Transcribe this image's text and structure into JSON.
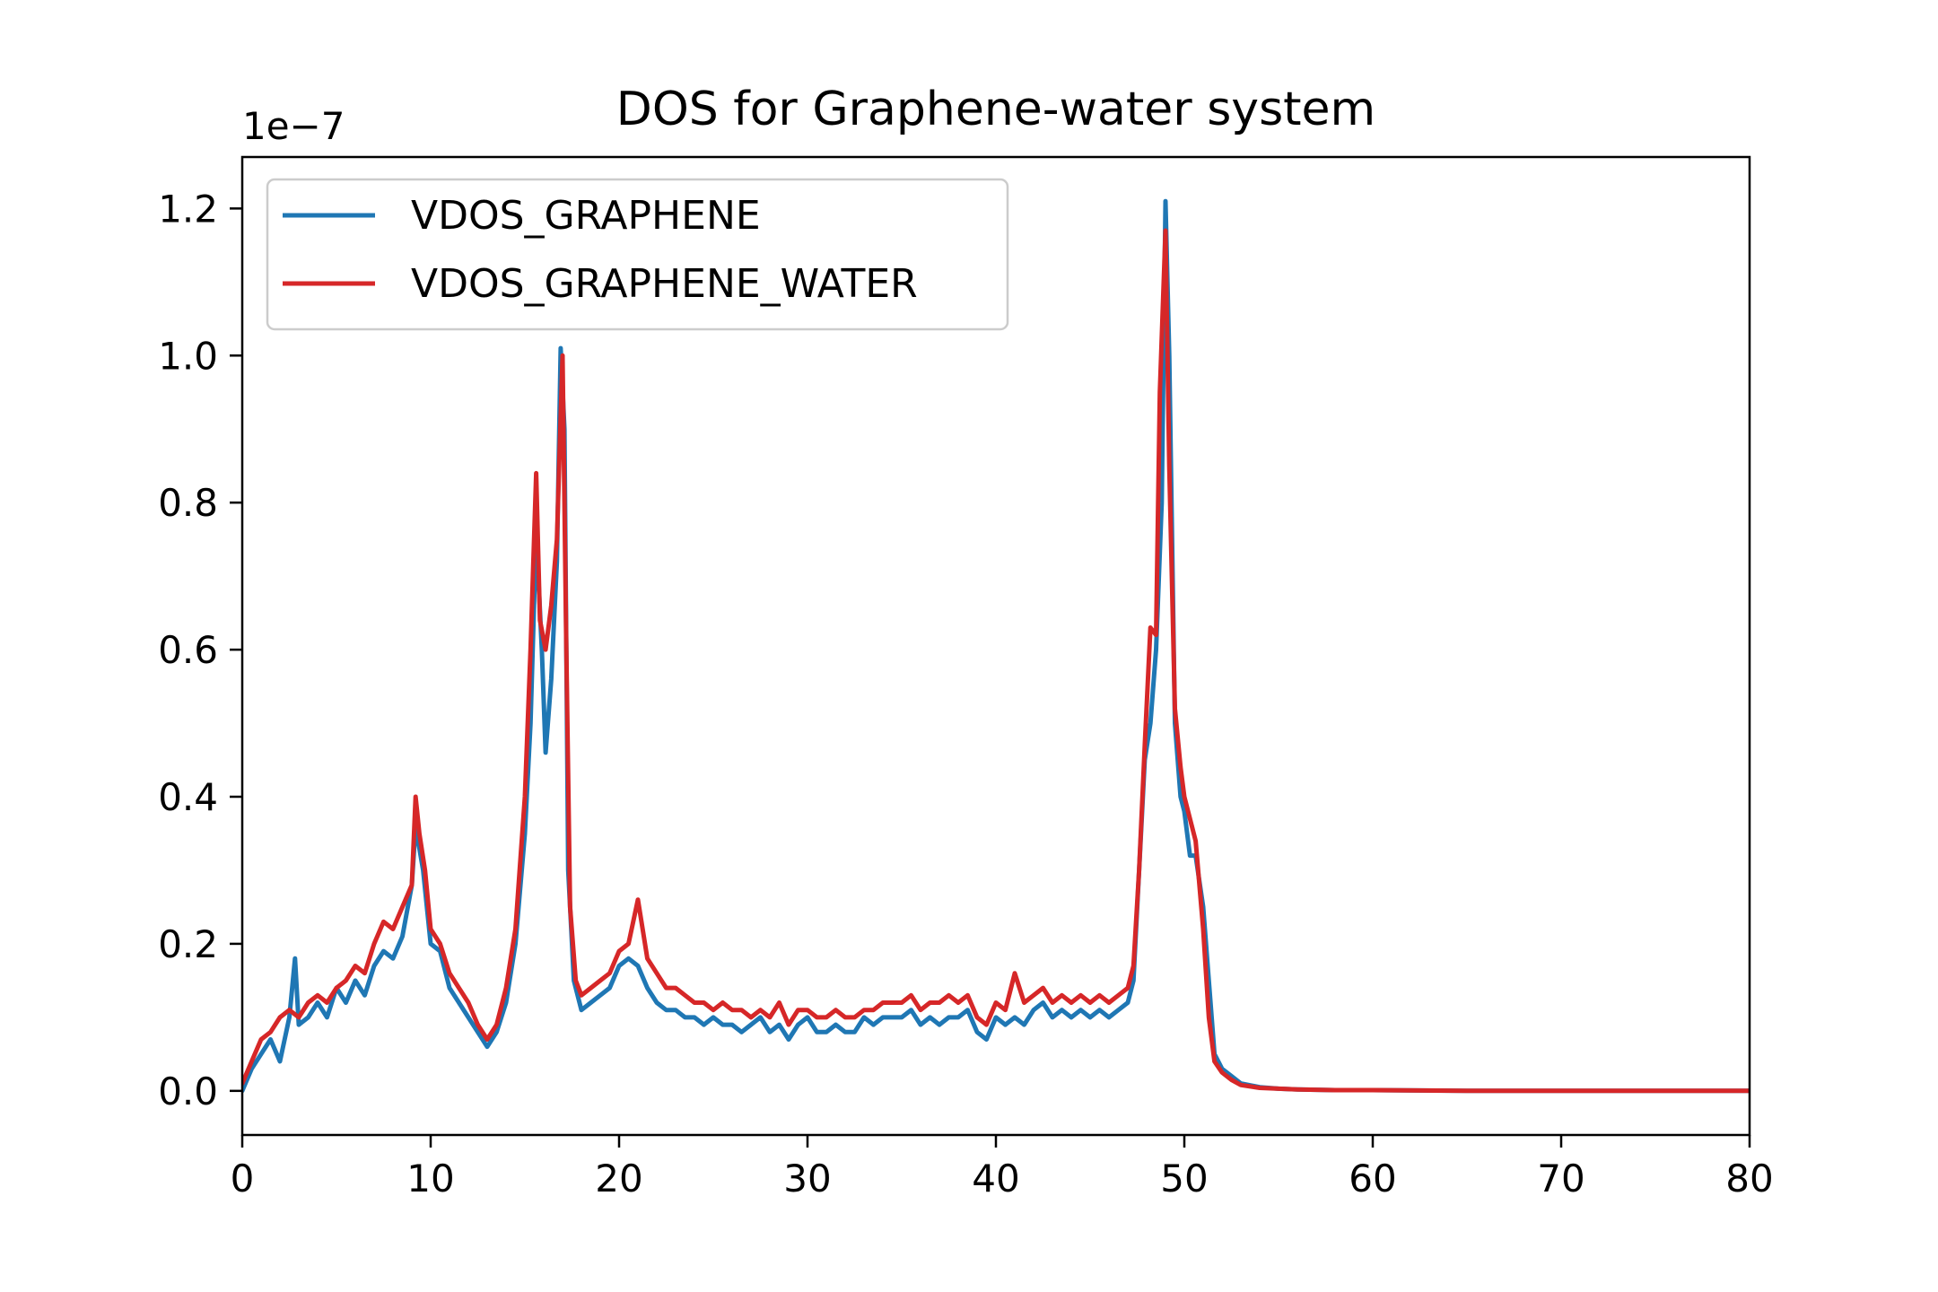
{
  "chart_data": {
    "type": "line",
    "title": "DOS for Graphene-water system",
    "xlabel": "",
    "ylabel": "",
    "offset_label": "1e−7",
    "xlim": [
      0,
      80
    ],
    "ylim": [
      -0.06,
      1.27
    ],
    "x_ticks": [
      0,
      10,
      20,
      30,
      40,
      50,
      60,
      70,
      80
    ],
    "x_tick_labels": [
      "0",
      "10",
      "20",
      "30",
      "40",
      "50",
      "60",
      "70",
      "80"
    ],
    "y_ticks": [
      0.0,
      0.2,
      0.4,
      0.6,
      0.8,
      1.0,
      1.2
    ],
    "y_tick_labels": [
      "0.0",
      "0.2",
      "0.4",
      "0.6",
      "0.8",
      "1.0",
      "1.2"
    ],
    "grid": false,
    "legend_position": "top-left",
    "series": [
      {
        "name": "VDOS_GRAPHENE",
        "color": "#1f77b4",
        "x": [
          0,
          0.5,
          1,
          1.5,
          2,
          2.5,
          2.8,
          3,
          3.5,
          4,
          4.5,
          5,
          5.5,
          6,
          6.5,
          7,
          7.5,
          8,
          8.5,
          9,
          9.2,
          9.6,
          10,
          10.5,
          11,
          11.5,
          12,
          12.5,
          13,
          13.5,
          14,
          14.5,
          15,
          15.3,
          15.6,
          15.9,
          16.1,
          16.4,
          16.7,
          16.9,
          17.1,
          17.3,
          17.6,
          18,
          18.5,
          19,
          19.5,
          20,
          20.5,
          21,
          21.5,
          22,
          22.5,
          23,
          23.5,
          24,
          24.5,
          25,
          25.5,
          26,
          26.5,
          27,
          27.5,
          28,
          28.5,
          29,
          29.5,
          30,
          30.5,
          31,
          31.5,
          32,
          32.5,
          33,
          33.5,
          34,
          34.5,
          35,
          35.5,
          36,
          36.5,
          37,
          37.5,
          38,
          38.5,
          39,
          39.5,
          40,
          40.5,
          41,
          41.5,
          42,
          42.5,
          43,
          43.5,
          44,
          44.5,
          45,
          45.5,
          46,
          46.5,
          47,
          47.3,
          47.6,
          47.9,
          48.2,
          48.5,
          48.8,
          49,
          49.2,
          49.5,
          49.8,
          50,
          50.3,
          50.6,
          51,
          51.3,
          51.6,
          52,
          52.5,
          53,
          54,
          55,
          56,
          58,
          60,
          65,
          70,
          75,
          80
        ],
        "y": [
          0.0,
          0.03,
          0.05,
          0.07,
          0.04,
          0.1,
          0.18,
          0.09,
          0.1,
          0.12,
          0.1,
          0.14,
          0.12,
          0.15,
          0.13,
          0.17,
          0.19,
          0.18,
          0.21,
          0.28,
          0.36,
          0.3,
          0.2,
          0.19,
          0.14,
          0.12,
          0.1,
          0.08,
          0.06,
          0.08,
          0.12,
          0.2,
          0.35,
          0.5,
          0.76,
          0.6,
          0.46,
          0.56,
          0.72,
          1.01,
          0.9,
          0.3,
          0.15,
          0.11,
          0.12,
          0.13,
          0.14,
          0.17,
          0.18,
          0.17,
          0.14,
          0.12,
          0.11,
          0.11,
          0.1,
          0.1,
          0.09,
          0.1,
          0.09,
          0.09,
          0.08,
          0.09,
          0.1,
          0.08,
          0.09,
          0.07,
          0.09,
          0.1,
          0.08,
          0.08,
          0.09,
          0.08,
          0.08,
          0.1,
          0.09,
          0.1,
          0.1,
          0.1,
          0.11,
          0.09,
          0.1,
          0.09,
          0.1,
          0.1,
          0.11,
          0.08,
          0.07,
          0.1,
          0.09,
          0.1,
          0.09,
          0.11,
          0.12,
          0.1,
          0.11,
          0.1,
          0.11,
          0.1,
          0.11,
          0.1,
          0.11,
          0.12,
          0.15,
          0.3,
          0.45,
          0.5,
          0.6,
          0.8,
          1.21,
          1.0,
          0.5,
          0.4,
          0.38,
          0.32,
          0.32,
          0.25,
          0.15,
          0.05,
          0.03,
          0.02,
          0.01,
          0.005,
          0.003,
          0.002,
          0.001,
          0.001,
          0.0,
          0.0,
          0.0,
          0.0
        ]
      },
      {
        "name": "VDOS_GRAPHENE_WATER",
        "color": "#d62728",
        "x": [
          0,
          0.5,
          1,
          1.5,
          2,
          2.5,
          3,
          3.5,
          4,
          4.5,
          5,
          5.5,
          6,
          6.5,
          7,
          7.5,
          8,
          8.5,
          9,
          9.2,
          9.4,
          9.7,
          10,
          10.5,
          11,
          11.5,
          12,
          12.5,
          13,
          13.5,
          14,
          14.5,
          15,
          15.3,
          15.6,
          15.8,
          16.1,
          16.4,
          16.7,
          17,
          17.2,
          17.4,
          17.7,
          18,
          18.5,
          19,
          19.5,
          20,
          20.5,
          21,
          21.5,
          22,
          22.5,
          23,
          23.5,
          24,
          24.5,
          25,
          25.5,
          26,
          26.5,
          27,
          27.5,
          28,
          28.5,
          29,
          29.5,
          30,
          30.5,
          31,
          31.5,
          32,
          32.5,
          33,
          33.5,
          34,
          34.5,
          35,
          35.5,
          36,
          36.5,
          37,
          37.5,
          38,
          38.5,
          39,
          39.5,
          40,
          40.5,
          41,
          41.5,
          42,
          42.5,
          43,
          43.5,
          44,
          44.5,
          45,
          45.5,
          46,
          46.5,
          47,
          47.3,
          47.6,
          47.9,
          48.2,
          48.5,
          48.7,
          49,
          49.2,
          49.5,
          49.8,
          50,
          50.3,
          50.6,
          51,
          51.3,
          51.6,
          52,
          52.5,
          53,
          54,
          55,
          56,
          58,
          60,
          65,
          70,
          75,
          80
        ],
        "y": [
          0.01,
          0.04,
          0.07,
          0.08,
          0.1,
          0.11,
          0.1,
          0.12,
          0.13,
          0.12,
          0.14,
          0.15,
          0.17,
          0.16,
          0.2,
          0.23,
          0.22,
          0.25,
          0.28,
          0.4,
          0.35,
          0.3,
          0.22,
          0.2,
          0.16,
          0.14,
          0.12,
          0.09,
          0.07,
          0.09,
          0.14,
          0.22,
          0.4,
          0.6,
          0.84,
          0.64,
          0.6,
          0.66,
          0.75,
          1.0,
          0.6,
          0.25,
          0.15,
          0.13,
          0.14,
          0.15,
          0.16,
          0.19,
          0.2,
          0.26,
          0.18,
          0.16,
          0.14,
          0.14,
          0.13,
          0.12,
          0.12,
          0.11,
          0.12,
          0.11,
          0.11,
          0.1,
          0.11,
          0.1,
          0.12,
          0.09,
          0.11,
          0.11,
          0.1,
          0.1,
          0.11,
          0.1,
          0.1,
          0.11,
          0.11,
          0.12,
          0.12,
          0.12,
          0.13,
          0.11,
          0.12,
          0.12,
          0.13,
          0.12,
          0.13,
          0.1,
          0.09,
          0.12,
          0.11,
          0.16,
          0.12,
          0.13,
          0.14,
          0.12,
          0.13,
          0.12,
          0.13,
          0.12,
          0.13,
          0.12,
          0.13,
          0.14,
          0.17,
          0.3,
          0.47,
          0.63,
          0.62,
          0.95,
          1.17,
          0.85,
          0.52,
          0.44,
          0.4,
          0.37,
          0.34,
          0.22,
          0.1,
          0.04,
          0.025,
          0.015,
          0.008,
          0.004,
          0.003,
          0.002,
          0.001,
          0.001,
          0.0,
          0.0,
          0.0,
          0.0
        ]
      }
    ]
  }
}
